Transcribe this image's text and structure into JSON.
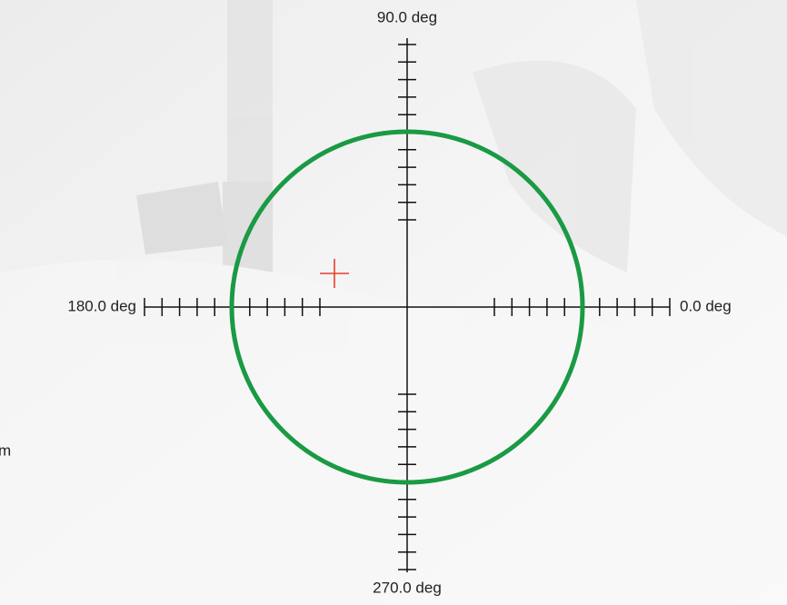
{
  "axes": {
    "top": "90.0 deg",
    "left": "180.0 deg",
    "right": "0.0 deg",
    "bottom": "270.0 deg"
  },
  "side_text": "m"
}
